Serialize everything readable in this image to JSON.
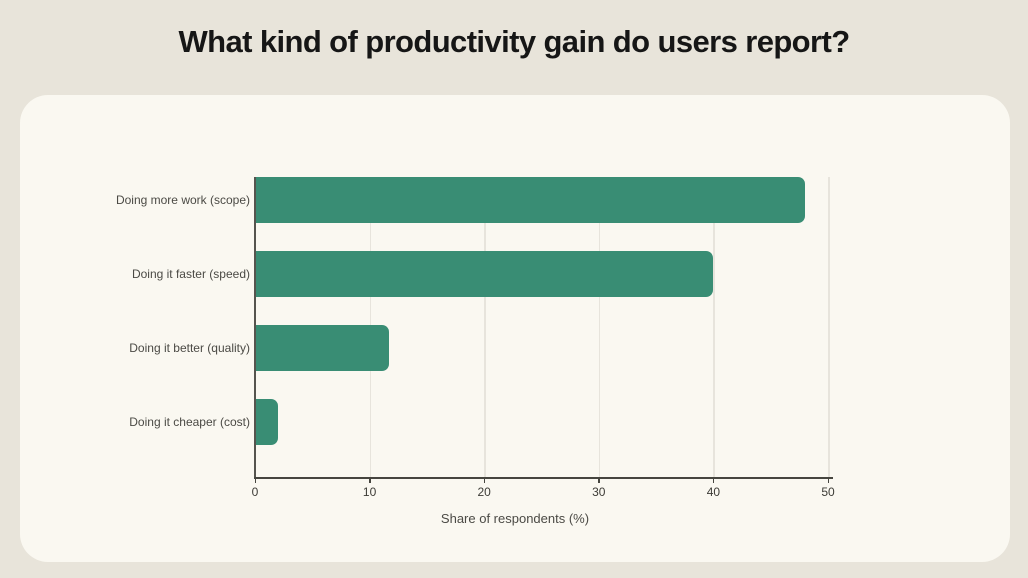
{
  "page": {
    "title": "What kind of productivity gain do users report?"
  },
  "chart_data": {
    "type": "bar",
    "orientation": "horizontal",
    "title": "What kind of productivity gain do users report?",
    "categories": [
      "Doing more work (scope)",
      "Doing it faster (speed)",
      "Doing it better (quality)",
      "Doing it cheaper (cost)"
    ],
    "values": [
      48,
      40,
      11.7,
      2
    ],
    "xlabel": "Share of respondents (%)",
    "xlim": [
      0,
      50
    ],
    "xticks": [
      0,
      10,
      20,
      30,
      40,
      50
    ],
    "grid": true,
    "legend": false
  },
  "colors": {
    "page_bg": "#e8e4da",
    "card_bg": "#faf8f1",
    "bar": "#398d74",
    "axis": "#46453f",
    "gridline": "#e7e4dc",
    "title_text": "#161616",
    "label_text": "#4b4a45"
  }
}
